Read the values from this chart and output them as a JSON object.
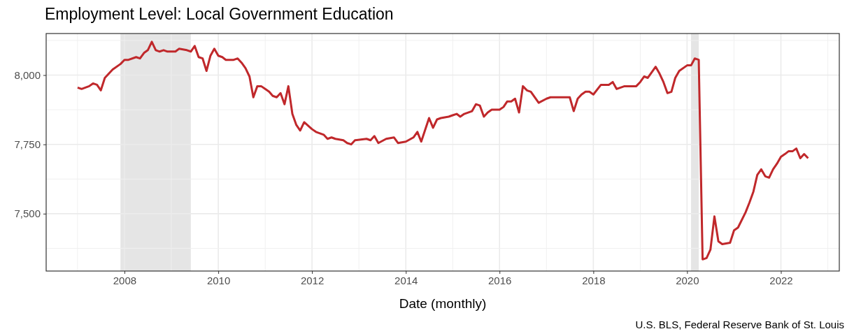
{
  "chart_data": {
    "type": "line",
    "title": "Employment Level: Local Government Education",
    "xlabel": "Date (monthly)",
    "annotations": [
      "U.S. BLS, Federal Reserve Bank of St. Louis"
    ],
    "xlim": [
      "2006-05",
      "2023-04"
    ],
    "xticks": [
      {
        "value": "2008",
        "label": "2008"
      },
      {
        "value": "2010",
        "label": "2010"
      },
      {
        "value": "2012",
        "label": "2012"
      },
      {
        "value": "2014",
        "label": "2014"
      },
      {
        "value": "2016",
        "label": "2016"
      },
      {
        "value": "2018",
        "label": "2018"
      },
      {
        "value": "2020",
        "label": "2020"
      },
      {
        "value": "2022",
        "label": "2022"
      }
    ],
    "ylim": [
      7293,
      8150
    ],
    "yticks": [
      {
        "value": 7500,
        "label": "7,500"
      },
      {
        "value": 7750,
        "label": "7,750"
      },
      {
        "value": 8000,
        "label": "8,000"
      }
    ],
    "grid": true,
    "line_style": "solid",
    "bands": [
      {
        "axis": "x",
        "from": "2007-12",
        "to": "2009-06",
        "color": "#e5e5e5"
      },
      {
        "axis": "x",
        "from": "2020-02",
        "to": "2020-04",
        "color": "#e5e5e5"
      }
    ],
    "x": [
      "2007-01",
      "2007-02",
      "2007-04",
      "2007-05",
      "2007-06",
      "2007-07",
      "2007-08",
      "2007-10",
      "2007-12",
      "2008-01",
      "2008-02",
      "2008-04",
      "2008-05",
      "2008-06",
      "2008-07",
      "2008-08",
      "2008-09",
      "2008-10",
      "2008-11",
      "2008-12",
      "2009-02",
      "2009-03",
      "2009-05",
      "2009-06",
      "2009-07",
      "2009-08",
      "2009-09",
      "2009-10",
      "2009-11",
      "2009-12",
      "2010-01",
      "2010-02",
      "2010-03",
      "2010-05",
      "2010-06",
      "2010-07",
      "2010-08",
      "2010-09",
      "2010-10",
      "2010-11",
      "2010-12",
      "2011-01",
      "2011-02",
      "2011-03",
      "2011-04",
      "2011-05",
      "2011-06",
      "2011-07",
      "2011-08",
      "2011-09",
      "2011-10",
      "2011-11",
      "2012-01",
      "2012-02",
      "2012-04",
      "2012-05",
      "2012-06",
      "2012-07",
      "2012-09",
      "2012-10",
      "2012-11",
      "2012-12",
      "2013-03",
      "2013-04",
      "2013-05",
      "2013-06",
      "2013-08",
      "2013-10",
      "2013-11",
      "2014-01",
      "2014-03",
      "2014-04",
      "2014-05",
      "2014-07",
      "2014-08",
      "2014-09",
      "2014-10",
      "2014-12",
      "2015-01",
      "2015-02",
      "2015-03",
      "2015-04",
      "2015-06",
      "2015-07",
      "2015-08",
      "2015-09",
      "2015-10",
      "2015-11",
      "2016-01",
      "2016-02",
      "2016-03",
      "2016-04",
      "2016-05",
      "2016-06",
      "2016-07",
      "2016-08",
      "2016-09",
      "2016-11",
      "2017-01",
      "2017-02",
      "2017-07",
      "2017-08",
      "2017-09",
      "2017-10",
      "2017-11",
      "2017-12",
      "2018-01",
      "2018-03",
      "2018-05",
      "2018-06",
      "2018-07",
      "2018-09",
      "2018-12",
      "2019-01",
      "2019-02",
      "2019-03",
      "2019-05",
      "2019-06",
      "2019-07",
      "2019-08",
      "2019-09",
      "2019-10",
      "2019-11",
      "2020-01",
      "2020-02",
      "2020-03",
      "2020-04",
      "2020-05",
      "2020-06",
      "2020-07",
      "2020-08",
      "2020-09",
      "2020-10",
      "2020-12",
      "2021-01",
      "2021-02",
      "2021-04",
      "2021-05",
      "2021-06",
      "2021-07",
      "2021-08",
      "2021-09",
      "2021-10",
      "2021-11",
      "2021-12",
      "2022-01",
      "2022-02",
      "2022-03",
      "2022-04",
      "2022-05",
      "2022-06",
      "2022-07",
      "2022-08"
    ],
    "series": [
      {
        "color": "#c0282b",
        "values": [
          7955,
          7950,
          7960,
          7970,
          7965,
          7945,
          7990,
          8020,
          8040,
          8055,
          8055,
          8065,
          8060,
          8080,
          8090,
          8120,
          8090,
          8085,
          8090,
          8085,
          8085,
          8095,
          8090,
          8085,
          8105,
          8065,
          8060,
          8015,
          8070,
          8095,
          8070,
          8065,
          8055,
          8055,
          8060,
          8045,
          8025,
          7995,
          7920,
          7960,
          7960,
          7950,
          7940,
          7925,
          7920,
          7935,
          7895,
          7960,
          7860,
          7820,
          7800,
          7830,
          7805,
          7795,
          7785,
          7770,
          7775,
          7770,
          7765,
          7755,
          7750,
          7765,
          7770,
          7765,
          7780,
          7755,
          7770,
          7775,
          7755,
          7760,
          7775,
          7795,
          7760,
          7845,
          7810,
          7840,
          7845,
          7850,
          7855,
          7860,
          7850,
          7860,
          7870,
          7895,
          7890,
          7850,
          7865,
          7875,
          7875,
          7885,
          7905,
          7905,
          7915,
          7865,
          7960,
          7945,
          7940,
          7900,
          7915,
          7920,
          7920,
          7870,
          7915,
          7930,
          7940,
          7940,
          7930,
          7965,
          7965,
          7975,
          7950,
          7960,
          7960,
          7975,
          7995,
          7990,
          8030,
          8005,
          7975,
          7935,
          7940,
          7990,
          8015,
          8035,
          8035,
          8060,
          8055,
          7335,
          7340,
          7370,
          7490,
          7400,
          7390,
          7395,
          7440,
          7450,
          7505,
          7540,
          7580,
          7640,
          7660,
          7635,
          7630,
          7660,
          7680,
          7705,
          7715,
          7725,
          7725,
          7735,
          7700,
          7715,
          7700
        ]
      }
    ]
  }
}
